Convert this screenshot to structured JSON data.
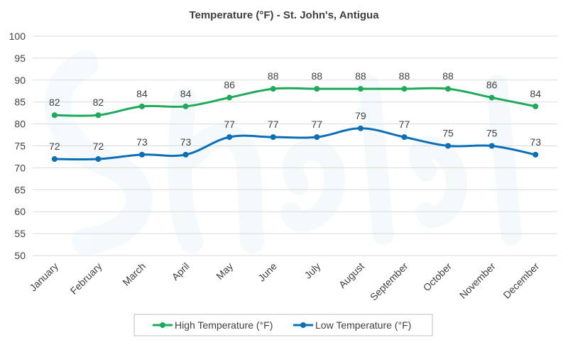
{
  "chart_data": {
    "type": "line",
    "title": "Temperature (°F) - St. John's, Antigua",
    "xlabel": "",
    "ylabel": "",
    "ylim": [
      50,
      100
    ],
    "yticks": [
      50,
      55,
      60,
      65,
      70,
      75,
      80,
      85,
      90,
      95,
      100
    ],
    "grid": true,
    "legend_position": "bottom",
    "categories": [
      "January",
      "February",
      "March",
      "April",
      "May",
      "June",
      "July",
      "August",
      "September",
      "October",
      "November",
      "December"
    ],
    "series": [
      {
        "name": "High Temperature (°F)",
        "color": "#1faa5b",
        "values": [
          82,
          82,
          84,
          84,
          86,
          88,
          88,
          88,
          88,
          88,
          86,
          84
        ]
      },
      {
        "name": "Low Temperature (°F)",
        "color": "#0b6fb8",
        "values": [
          72,
          72,
          73,
          73,
          77,
          77,
          77,
          79,
          77,
          75,
          75,
          73
        ]
      }
    ]
  }
}
